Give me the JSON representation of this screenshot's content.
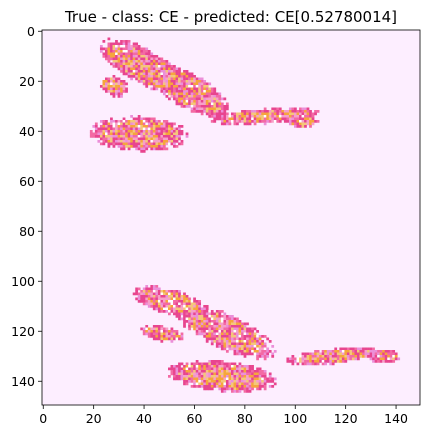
{
  "chart_data": {
    "type": "heatmap",
    "title": "True - class: CE - predicted: CE[0.52780014]",
    "xlabel": "",
    "ylabel": "",
    "xlim": [
      -0.5,
      149.5
    ],
    "ylim": [
      149.5,
      -0.5
    ],
    "x_ticks": [
      0,
      20,
      40,
      60,
      80,
      100,
      120,
      140
    ],
    "y_ticks": [
      0,
      20,
      40,
      60,
      80,
      100,
      120,
      140
    ],
    "grid": false,
    "background_color": "#fdeeff",
    "palette": [
      "#e8458f",
      "#f36aa4",
      "#f7a0c9",
      "#f6a53c",
      "#f4c77a",
      "#ffffff",
      "#eb8fd9"
    ],
    "regions": [
      {
        "id": "blob-1",
        "cx": 40,
        "cy": 14,
        "rx": 20,
        "ry": 7,
        "rotation_deg": 28
      },
      {
        "id": "blob-2",
        "cx": 58,
        "cy": 24,
        "rx": 18,
        "ry": 7,
        "rotation_deg": 30
      },
      {
        "id": "blob-3",
        "cx": 28,
        "cy": 22,
        "rx": 6,
        "ry": 4,
        "rotation_deg": 20
      },
      {
        "id": "blob-4",
        "cx": 38,
        "cy": 41,
        "rx": 20,
        "ry": 7,
        "rotation_deg": 2
      },
      {
        "id": "blob-5",
        "cx": 88,
        "cy": 34,
        "rx": 22,
        "ry": 3,
        "rotation_deg": -4
      },
      {
        "id": "blob-6",
        "cx": 103,
        "cy": 36,
        "rx": 6,
        "ry": 2.5,
        "rotation_deg": 0
      },
      {
        "id": "blob-7",
        "cx": 50,
        "cy": 108,
        "rx": 15,
        "ry": 5,
        "rotation_deg": 15
      },
      {
        "id": "blob-8",
        "cx": 72,
        "cy": 120,
        "rx": 22,
        "ry": 7,
        "rotation_deg": 25
      },
      {
        "id": "blob-9",
        "cx": 47,
        "cy": 121,
        "rx": 9,
        "ry": 3,
        "rotation_deg": 10
      },
      {
        "id": "blob-10",
        "cx": 71,
        "cy": 138,
        "rx": 22,
        "ry": 6,
        "rotation_deg": 5
      },
      {
        "id": "blob-11",
        "cx": 115,
        "cy": 130,
        "rx": 20,
        "ry": 3,
        "rotation_deg": -6
      },
      {
        "id": "blob-12",
        "cx": 135,
        "cy": 130,
        "rx": 7,
        "ry": 2.5,
        "rotation_deg": 0
      }
    ]
  }
}
